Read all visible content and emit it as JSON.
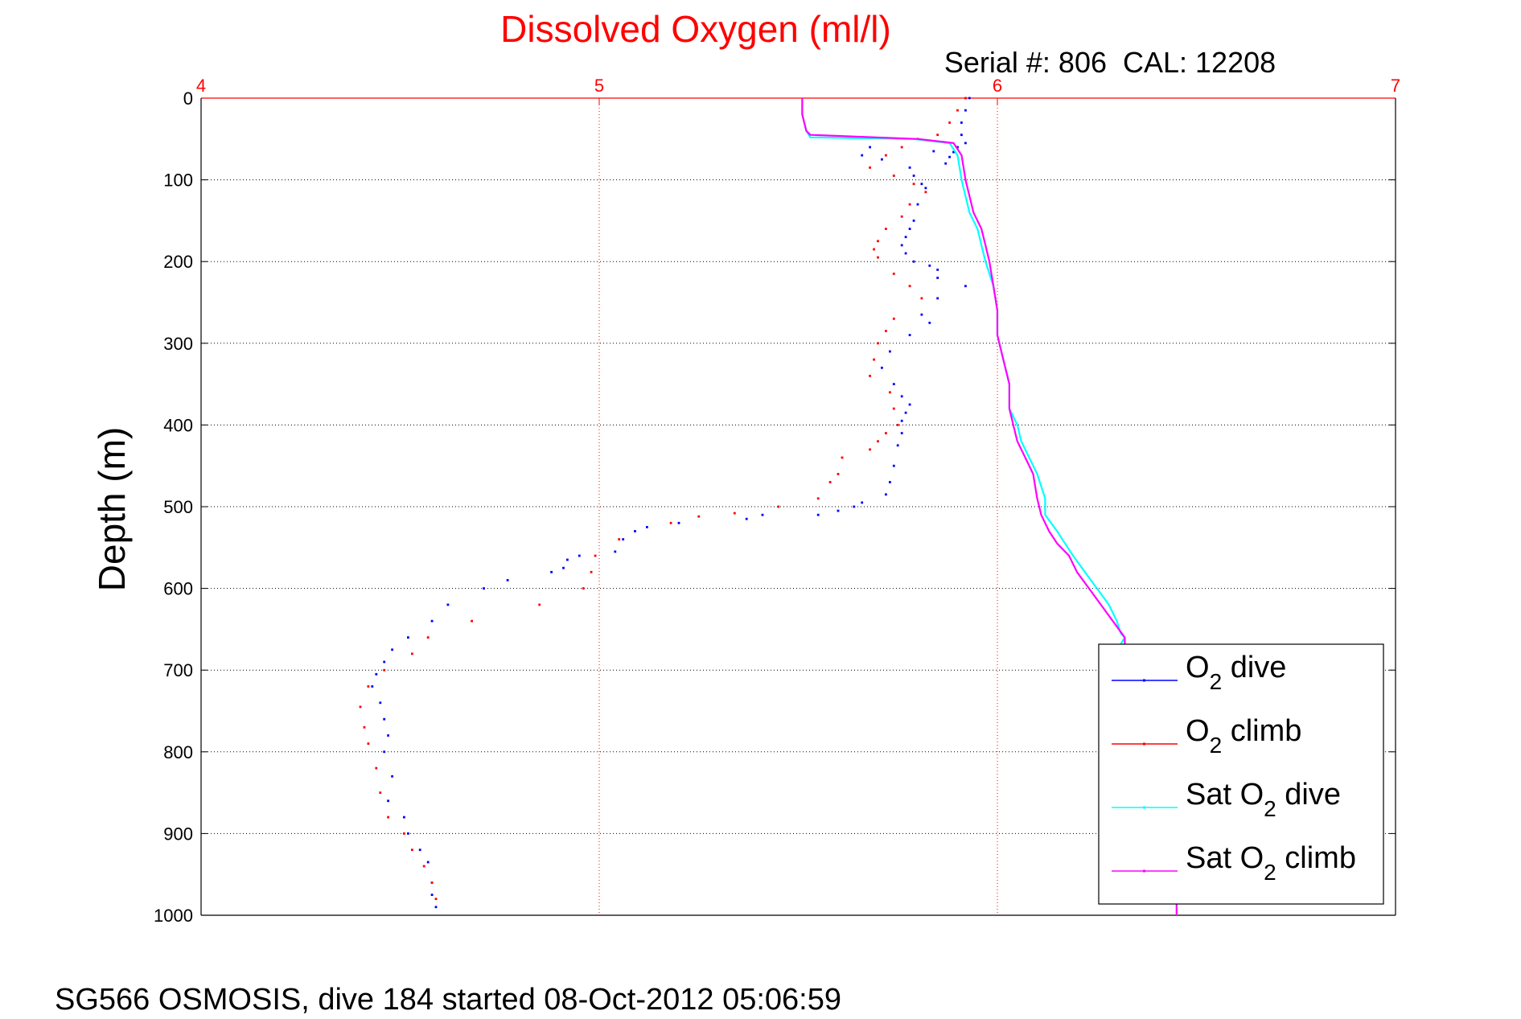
{
  "chart_data": {
    "type": "scatter",
    "title": "Dissolved Oxygen (ml/l)",
    "subtitle": "Serial #: 806  CAL: 12208",
    "ylabel": "Depth (m)",
    "footer": "SG566 OSMOSIS, dive 184 started 08-Oct-2012 05:06:59",
    "x_axis_position": "top",
    "y_axis_reversed": true,
    "xlim": [
      4,
      7
    ],
    "ylim": [
      0,
      1000
    ],
    "xticks": [
      "4",
      "5",
      "6",
      "7"
    ],
    "yticks": [
      "0",
      "100",
      "200",
      "300",
      "400",
      "500",
      "600",
      "700",
      "800",
      "900",
      "1000"
    ],
    "grid": true,
    "legend_position": "bottom-right",
    "colors": {
      "title": "#ff0000",
      "x_axis": "#ff0000",
      "y_axis": "#000000",
      "o2_dive": "#0000ff",
      "o2_climb": "#ff0000",
      "sat_dive": "#00ffff",
      "sat_climb": "#ff00ff"
    },
    "series": [
      {
        "name": "O2 dive",
        "legend_prefix": "O",
        "legend_sub": "2",
        "legend_suffix": " dive",
        "style": "points",
        "color_key": "o2_dive",
        "x": [
          5.93,
          5.92,
          5.91,
          5.91,
          5.92,
          5.9,
          5.89,
          5.88,
          5.87,
          5.84,
          5.68,
          5.66,
          5.71,
          5.78,
          5.79,
          5.81,
          5.82,
          5.8,
          5.79,
          5.78,
          5.77,
          5.76,
          5.77,
          5.79,
          5.83,
          5.85,
          5.85,
          5.92,
          5.85,
          5.81,
          5.83,
          5.78,
          5.73,
          5.71,
          5.74,
          5.76,
          5.78,
          5.77,
          5.76,
          5.76,
          5.75,
          5.74,
          5.73,
          5.72,
          5.66,
          5.64,
          5.6,
          5.55,
          5.41,
          5.37,
          5.2,
          5.12,
          5.09,
          5.06,
          5.04,
          4.95,
          4.92,
          4.91,
          4.88,
          4.77,
          4.71,
          4.62,
          4.58,
          4.52,
          4.48,
          4.46,
          4.44,
          4.43,
          4.45,
          4.46,
          4.47,
          4.46,
          4.48,
          4.47,
          4.51,
          4.52,
          4.55,
          4.57,
          4.58,
          4.58,
          4.59
        ],
        "y": [
          0,
          15,
          30,
          45,
          55,
          60,
          66,
          72,
          80,
          65,
          60,
          70,
          75,
          85,
          95,
          105,
          110,
          130,
          150,
          160,
          170,
          180,
          190,
          200,
          205,
          210,
          220,
          230,
          245,
          265,
          275,
          290,
          310,
          330,
          350,
          365,
          375,
          385,
          395,
          410,
          425,
          450,
          470,
          485,
          495,
          500,
          505,
          510,
          510,
          515,
          520,
          525,
          530,
          540,
          555,
          560,
          565,
          575,
          580,
          590,
          600,
          620,
          640,
          660,
          675,
          690,
          705,
          720,
          740,
          760,
          780,
          800,
          830,
          860,
          880,
          900,
          920,
          935,
          960,
          975,
          990
        ]
      },
      {
        "name": "O2 climb",
        "legend_prefix": "O",
        "legend_sub": "2",
        "legend_suffix": " climb",
        "style": "points",
        "color_key": "o2_climb",
        "x": [
          5.92,
          5.9,
          5.88,
          5.85,
          5.8,
          5.76,
          5.72,
          5.68,
          5.74,
          5.79,
          5.82,
          5.78,
          5.76,
          5.72,
          5.7,
          5.69,
          5.7,
          5.74,
          5.78,
          5.81,
          5.74,
          5.72,
          5.7,
          5.69,
          5.68,
          5.73,
          5.74,
          5.75,
          5.72,
          5.7,
          5.68,
          5.61,
          5.6,
          5.58,
          5.55,
          5.45,
          5.34,
          5.25,
          5.18,
          5.05,
          4.99,
          4.98,
          4.96,
          4.85,
          4.68,
          4.57,
          4.53,
          4.46,
          4.42,
          4.4,
          4.41,
          4.42,
          4.44,
          4.45,
          4.47,
          4.51,
          4.53,
          4.56,
          4.58,
          4.59
        ],
        "y": [
          0,
          15,
          30,
          45,
          50,
          60,
          70,
          85,
          95,
          105,
          115,
          130,
          145,
          160,
          175,
          185,
          195,
          215,
          230,
          245,
          270,
          285,
          300,
          320,
          340,
          360,
          380,
          400,
          410,
          420,
          430,
          440,
          460,
          470,
          490,
          500,
          508,
          512,
          520,
          540,
          560,
          580,
          600,
          620,
          640,
          660,
          680,
          700,
          720,
          745,
          770,
          790,
          820,
          850,
          880,
          900,
          920,
          940,
          960,
          980
        ]
      },
      {
        "name": "Sat O2 dive",
        "legend_prefix": "Sat O",
        "legend_sub": "2",
        "legend_suffix": " dive",
        "style": "line",
        "color_key": "sat_dive",
        "x": [
          5.51,
          5.51,
          5.52,
          5.53,
          5.79,
          5.88,
          5.9,
          5.91,
          5.93,
          5.95,
          5.96,
          5.97,
          5.99,
          6.0,
          6.0,
          6.01,
          6.02,
          6.03,
          6.03,
          6.05,
          6.06,
          6.08,
          6.1,
          6.12,
          6.12,
          6.15,
          6.17,
          6.19,
          6.22,
          6.25,
          6.28,
          6.3,
          6.31,
          6.32,
          6.31
        ],
        "y": [
          0,
          20,
          40,
          48,
          50,
          55,
          70,
          100,
          140,
          160,
          180,
          200,
          230,
          260,
          290,
          310,
          330,
          350,
          380,
          400,
          420,
          440,
          460,
          490,
          510,
          530,
          545,
          560,
          580,
          600,
          620,
          640,
          655,
          660,
          668
        ]
      },
      {
        "name": "Sat O2 climb",
        "legend_prefix": "Sat O",
        "legend_sub": "2",
        "legend_suffix": " climb",
        "style": "line",
        "color_key": "sat_climb",
        "x": [
          5.51,
          5.51,
          5.52,
          5.53,
          5.8,
          5.89,
          5.91,
          5.92,
          5.94,
          5.96,
          5.97,
          5.98,
          5.99,
          6.0,
          6.0,
          6.01,
          6.02,
          6.03,
          6.03,
          6.04,
          6.05,
          6.07,
          6.09,
          6.1,
          6.11,
          6.13,
          6.15,
          6.18,
          6.2,
          6.23,
          6.26,
          6.29,
          6.32,
          6.32,
          6.32,
          6.4,
          6.45,
          6.45
        ],
        "y": [
          0,
          20,
          40,
          45,
          50,
          55,
          70,
          100,
          140,
          160,
          180,
          200,
          230,
          260,
          290,
          310,
          330,
          350,
          380,
          400,
          420,
          440,
          460,
          490,
          510,
          530,
          545,
          560,
          580,
          600,
          620,
          640,
          660,
          670,
          680,
          820,
          900,
          1000
        ]
      }
    ]
  }
}
